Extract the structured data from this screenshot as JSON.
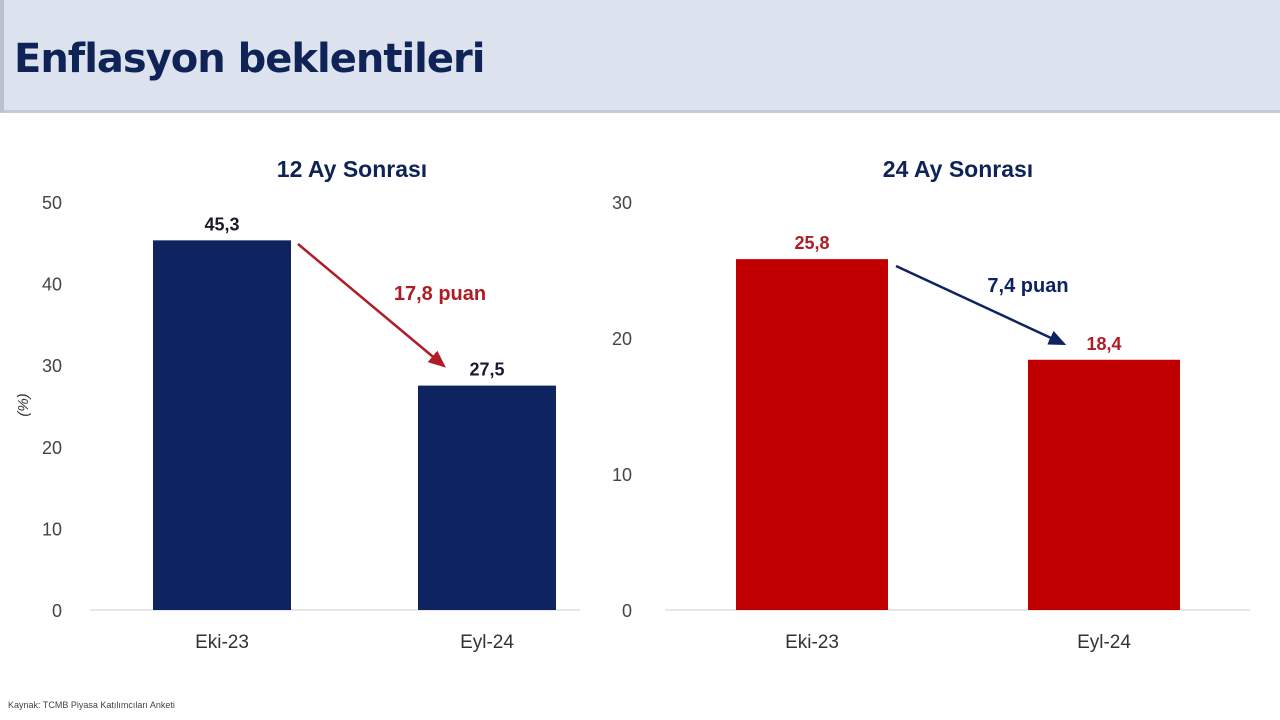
{
  "header": {
    "title": "Enflasyon beklentileri"
  },
  "source": "Kaynak: TCMB Piyasa Katılımcıları Anketi",
  "chart_data": [
    {
      "type": "bar",
      "title": "12 Ay Sonrası",
      "ylabel": "(%)",
      "ylim": [
        0,
        50
      ],
      "yticks": [
        0,
        10,
        20,
        30,
        40,
        50
      ],
      "categories": [
        "Eki-23",
        "Eyl-24"
      ],
      "values": [
        45.3,
        27.5
      ],
      "value_labels": [
        "45,3",
        "27,5"
      ],
      "bar_color": "#0d2461",
      "label_color": "#1a1a2e",
      "annotation": {
        "text": "17,8 puan",
        "color": "#b01c24"
      },
      "grid": false
    },
    {
      "type": "bar",
      "title": "24 Ay Sonrası",
      "ylabel": "",
      "ylim": [
        0,
        30
      ],
      "yticks": [
        0,
        10,
        20,
        30
      ],
      "categories": [
        "Eki-23",
        "Eyl-24"
      ],
      "values": [
        25.8,
        18.4
      ],
      "value_labels": [
        "25,8",
        "18,4"
      ],
      "bar_color": "#c00000",
      "label_color": "#b01c24",
      "annotation": {
        "text": "7,4 puan",
        "color": "#0d2461"
      },
      "grid": false
    }
  ]
}
